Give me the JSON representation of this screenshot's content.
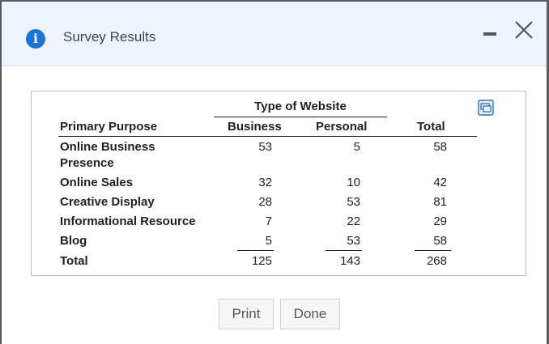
{
  "dialog": {
    "title": "Survey Results",
    "icons": {
      "info": "info-icon",
      "minimize": "minimize-icon",
      "close": "close-icon",
      "popout": "popout-window-icon"
    }
  },
  "table": {
    "group_header": "Type of Website",
    "columns": [
      "Primary Purpose",
      "Business",
      "Personal",
      "Total"
    ],
    "rows": [
      {
        "label_line1": "Online Business",
        "label_line2": "Presence",
        "business": "53",
        "personal": "5",
        "total": "58"
      },
      {
        "label_line1": "Online Sales",
        "business": "32",
        "personal": "10",
        "total": "42"
      },
      {
        "label_line1": "Creative Display",
        "business": "28",
        "personal": "53",
        "total": "81"
      },
      {
        "label_line1": "Informational Resource",
        "business": "7",
        "personal": "22",
        "total": "29"
      },
      {
        "label_line1": "Blog",
        "business": "5",
        "personal": "53",
        "total": "58"
      }
    ],
    "totals": {
      "label": "Total",
      "business": "125",
      "personal": "143",
      "total": "268"
    }
  },
  "buttons": {
    "print": "Print",
    "done": "Done"
  }
}
